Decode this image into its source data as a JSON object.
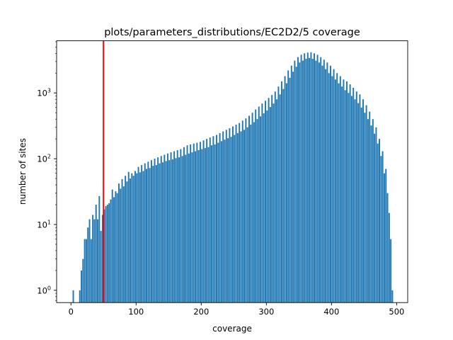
{
  "chart_data": {
    "type": "bar",
    "title": "plots/parameters_distributions/EC2D2/5 coverage",
    "xlabel": "coverage",
    "ylabel": "number of sites",
    "xlim": [
      -22,
      517
    ],
    "ylim": [
      0.65,
      6200
    ],
    "yscale": "log",
    "grid": false,
    "bar_color": "#1f77b4",
    "threshold": {
      "x": 50,
      "color": "#ff0000"
    },
    "x_ticks": [
      {
        "value": 0,
        "label": "0"
      },
      {
        "value": 100,
        "label": "100"
      },
      {
        "value": 200,
        "label": "200"
      },
      {
        "value": 300,
        "label": "300"
      },
      {
        "value": 400,
        "label": "400"
      },
      {
        "value": 500,
        "label": "500"
      }
    ],
    "y_ticks": [
      {
        "value": 1,
        "base": "10",
        "exp": "0"
      },
      {
        "value": 10,
        "base": "10",
        "exp": "1"
      },
      {
        "value": 100,
        "base": "10",
        "exp": "2"
      },
      {
        "value": 1000,
        "base": "10",
        "exp": "3"
      }
    ],
    "bin_width": 2.5,
    "bins": [
      [
        2.5,
        1
      ],
      [
        5,
        0
      ],
      [
        10,
        0
      ],
      [
        12.5,
        1
      ],
      [
        15,
        2
      ],
      [
        17.5,
        3
      ],
      [
        20,
        6
      ],
      [
        22.5,
        6
      ],
      [
        25,
        9
      ],
      [
        27.5,
        12
      ],
      [
        30,
        6
      ],
      [
        32.5,
        14
      ],
      [
        35,
        12
      ],
      [
        37.5,
        20
      ],
      [
        40,
        12
      ],
      [
        42.5,
        27
      ],
      [
        45,
        8
      ],
      [
        47.5,
        14
      ],
      [
        50,
        17
      ],
      [
        52.5,
        19
      ],
      [
        55,
        20
      ],
      [
        57.5,
        21
      ],
      [
        60,
        24
      ],
      [
        62.5,
        34
      ],
      [
        65,
        26
      ],
      [
        67.5,
        32
      ],
      [
        70,
        30
      ],
      [
        72.5,
        42
      ],
      [
        75,
        35
      ],
      [
        77.5,
        49
      ],
      [
        80,
        38
      ],
      [
        82.5,
        55
      ],
      [
        85,
        45
      ],
      [
        87.5,
        63
      ],
      [
        90,
        50
      ],
      [
        92.5,
        60
      ],
      [
        95,
        55
      ],
      [
        97.5,
        65
      ],
      [
        100,
        60
      ],
      [
        102.5,
        75
      ],
      [
        105,
        62
      ],
      [
        107.5,
        80
      ],
      [
        110,
        65
      ],
      [
        112.5,
        85
      ],
      [
        115,
        70
      ],
      [
        117.5,
        90
      ],
      [
        120,
        72
      ],
      [
        122.5,
        95
      ],
      [
        125,
        78
      ],
      [
        127.5,
        100
      ],
      [
        130,
        80
      ],
      [
        132.5,
        105
      ],
      [
        135,
        85
      ],
      [
        137.5,
        110
      ],
      [
        140,
        88
      ],
      [
        142.5,
        115
      ],
      [
        145,
        92
      ],
      [
        147.5,
        120
      ],
      [
        150,
        95
      ],
      [
        152.5,
        125
      ],
      [
        155,
        98
      ],
      [
        157.5,
        130
      ],
      [
        160,
        102
      ],
      [
        162.5,
        135
      ],
      [
        165,
        105
      ],
      [
        167.5,
        140
      ],
      [
        170,
        110
      ],
      [
        172.5,
        150
      ],
      [
        175,
        115
      ],
      [
        177.5,
        160
      ],
      [
        180,
        120
      ],
      [
        182.5,
        165
      ],
      [
        185,
        125
      ],
      [
        187.5,
        170
      ],
      [
        190,
        130
      ],
      [
        192.5,
        175
      ],
      [
        195,
        135
      ],
      [
        197.5,
        180
      ],
      [
        200,
        140
      ],
      [
        202.5,
        190
      ],
      [
        205,
        145
      ],
      [
        207.5,
        200
      ],
      [
        210,
        150
      ],
      [
        212.5,
        210
      ],
      [
        215,
        160
      ],
      [
        217.5,
        220
      ],
      [
        220,
        165
      ],
      [
        222.5,
        230
      ],
      [
        225,
        175
      ],
      [
        227.5,
        245
      ],
      [
        230,
        185
      ],
      [
        232.5,
        260
      ],
      [
        235,
        195
      ],
      [
        237.5,
        275
      ],
      [
        240,
        205
      ],
      [
        242.5,
        290
      ],
      [
        245,
        215
      ],
      [
        247.5,
        310
      ],
      [
        250,
        230
      ],
      [
        252.5,
        330
      ],
      [
        255,
        245
      ],
      [
        257.5,
        350
      ],
      [
        260,
        260
      ],
      [
        262.5,
        380
      ],
      [
        265,
        275
      ],
      [
        267.5,
        410
      ],
      [
        270,
        300
      ],
      [
        272.5,
        450
      ],
      [
        275,
        330
      ],
      [
        277.5,
        500
      ],
      [
        280,
        360
      ],
      [
        282.5,
        560
      ],
      [
        285,
        400
      ],
      [
        287.5,
        620
      ],
      [
        290,
        440
      ],
      [
        292.5,
        690
      ],
      [
        295,
        490
      ],
      [
        297.5,
        760
      ],
      [
        300,
        540
      ],
      [
        302.5,
        840
      ],
      [
        305,
        610
      ],
      [
        307.5,
        930
      ],
      [
        310,
        690
      ],
      [
        312.5,
        1050
      ],
      [
        315,
        800
      ],
      [
        317.5,
        1250
      ],
      [
        320,
        950
      ],
      [
        322.5,
        1500
      ],
      [
        325,
        1150
      ],
      [
        327.5,
        1800
      ],
      [
        330,
        1400
      ],
      [
        332.5,
        2200
      ],
      [
        335,
        1700
      ],
      [
        337.5,
        2600
      ],
      [
        340,
        2100
      ],
      [
        342.5,
        3100
      ],
      [
        345,
        2500
      ],
      [
        347.5,
        3500
      ],
      [
        350,
        2900
      ],
      [
        352.5,
        3800
      ],
      [
        355,
        3100
      ],
      [
        357.5,
        4000
      ],
      [
        360,
        3300
      ],
      [
        362.5,
        4100
      ],
      [
        365,
        3400
      ],
      [
        367.5,
        4150
      ],
      [
        370,
        3300
      ],
      [
        372.5,
        4000
      ],
      [
        375,
        3100
      ],
      [
        377.5,
        3800
      ],
      [
        380,
        2900
      ],
      [
        382.5,
        3500
      ],
      [
        385,
        2600
      ],
      [
        387.5,
        3200
      ],
      [
        390,
        2300
      ],
      [
        392.5,
        2900
      ],
      [
        395,
        2000
      ],
      [
        397.5,
        2600
      ],
      [
        400,
        1800
      ],
      [
        402.5,
        2300
      ],
      [
        405,
        1600
      ],
      [
        407.5,
        2000
      ],
      [
        410,
        1400
      ],
      [
        412.5,
        1800
      ],
      [
        415,
        1250
      ],
      [
        417.5,
        1600
      ],
      [
        420,
        1100
      ],
      [
        422.5,
        1500
      ],
      [
        425,
        1000
      ],
      [
        427.5,
        1350
      ],
      [
        430,
        900
      ],
      [
        432.5,
        1200
      ],
      [
        435,
        800
      ],
      [
        437.5,
        1050
      ],
      [
        440,
        700
      ],
      [
        442.5,
        950
      ],
      [
        445,
        600
      ],
      [
        447.5,
        800
      ],
      [
        450,
        500
      ],
      [
        452.5,
        650
      ],
      [
        455,
        400
      ],
      [
        457.5,
        520
      ],
      [
        460,
        320
      ],
      [
        462.5,
        400
      ],
      [
        465,
        240
      ],
      [
        467.5,
        300
      ],
      [
        470,
        170
      ],
      [
        472.5,
        200
      ],
      [
        475,
        110
      ],
      [
        477.5,
        130
      ],
      [
        480,
        60
      ],
      [
        482.5,
        70
      ],
      [
        485,
        30
      ],
      [
        487.5,
        15
      ],
      [
        490,
        6
      ],
      [
        492.5,
        1
      ]
    ]
  }
}
